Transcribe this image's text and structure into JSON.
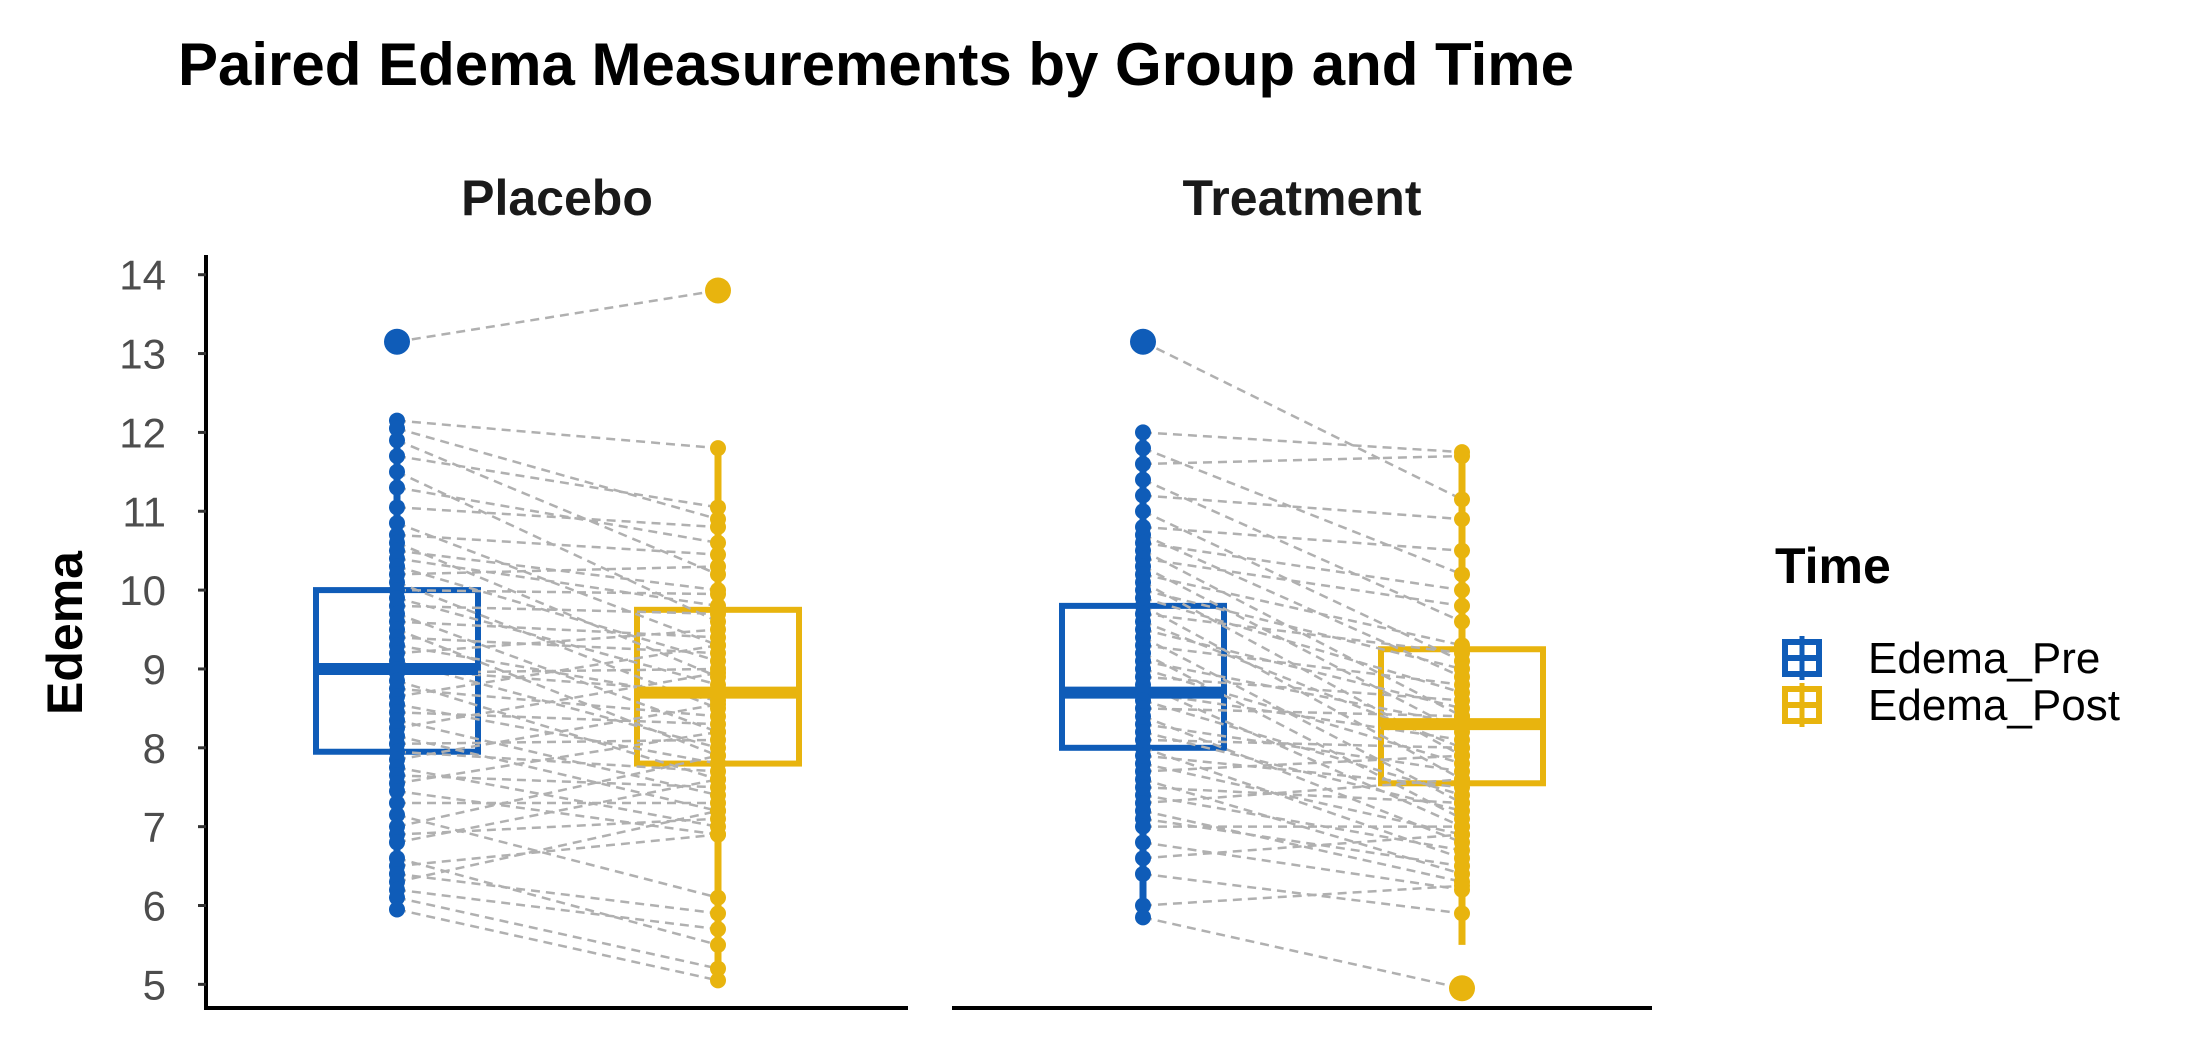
{
  "chart_data": {
    "type": "boxplot",
    "title": "Paired Edema Measurements by Group and Time",
    "ylabel": "Edema",
    "xlabel": "",
    "ylim": [
      4.7,
      14.25
    ],
    "yticks": [
      5,
      6,
      7,
      8,
      9,
      10,
      11,
      12,
      13,
      14
    ],
    "grid": false,
    "legend": {
      "title": "Time",
      "position": "right",
      "entries": [
        {
          "label": "Edema_Pre",
          "color": "#0f5cb8"
        },
        {
          "label": "Edema_Post",
          "color": "#e8b40e"
        }
      ]
    },
    "panels": [
      {
        "name": "Placebo",
        "boxes": [
          {
            "series": "Edema_Pre",
            "color": "#0f5cb8",
            "q1": 7.95,
            "median": 9.0,
            "q3": 10.0,
            "whisker_low": 5.95,
            "whisker_high": 12.15,
            "outliers": [
              13.15
            ]
          },
          {
            "series": "Edema_Post",
            "color": "#e8b40e",
            "q1": 7.8,
            "median": 8.7,
            "q3": 9.75,
            "whisker_low": 5.05,
            "whisker_high": 11.8,
            "outliers": [
              13.8
            ]
          }
        ],
        "pairs": [
          [
            13.15,
            13.8
          ],
          [
            12.15,
            11.8
          ],
          [
            12.05,
            10.9
          ],
          [
            11.9,
            10.2
          ],
          [
            11.7,
            11.05
          ],
          [
            11.5,
            9.6
          ],
          [
            11.3,
            10.6
          ],
          [
            11.05,
            10.8
          ],
          [
            10.85,
            9.3
          ],
          [
            10.7,
            10.45
          ],
          [
            10.6,
            8.9
          ],
          [
            10.5,
            10.0
          ],
          [
            10.4,
            9.8
          ],
          [
            10.3,
            9.1
          ],
          [
            10.2,
            10.3
          ],
          [
            10.1,
            8.5
          ],
          [
            10.0,
            9.95
          ],
          [
            9.9,
            8.8
          ],
          [
            9.8,
            9.7
          ],
          [
            9.7,
            8.2
          ],
          [
            9.6,
            9.4
          ],
          [
            9.5,
            7.9
          ],
          [
            9.4,
            9.2
          ],
          [
            9.3,
            8.6
          ],
          [
            9.2,
            9.5
          ],
          [
            9.1,
            8.0
          ],
          [
            9.0,
            8.7
          ],
          [
            8.95,
            9.0
          ],
          [
            8.85,
            7.6
          ],
          [
            8.75,
            8.4
          ],
          [
            8.65,
            9.3
          ],
          [
            8.55,
            7.8
          ],
          [
            8.45,
            8.3
          ],
          [
            8.35,
            7.4
          ],
          [
            8.25,
            8.95
          ],
          [
            8.15,
            7.2
          ],
          [
            8.05,
            8.1
          ],
          [
            7.95,
            7.7
          ],
          [
            7.85,
            8.55
          ],
          [
            7.75,
            7.0
          ],
          [
            7.65,
            7.5
          ],
          [
            7.55,
            8.2
          ],
          [
            7.45,
            6.9
          ],
          [
            7.3,
            7.3
          ],
          [
            7.15,
            6.1
          ],
          [
            7.0,
            7.9
          ],
          [
            6.9,
            7.1
          ],
          [
            6.8,
            7.6
          ],
          [
            6.6,
            5.5
          ],
          [
            6.5,
            6.9
          ],
          [
            6.4,
            5.9
          ],
          [
            6.3,
            7.2
          ],
          [
            6.2,
            5.7
          ],
          [
            6.1,
            5.2
          ],
          [
            5.95,
            5.05
          ]
        ]
      },
      {
        "name": "Treatment",
        "boxes": [
          {
            "series": "Edema_Pre",
            "color": "#0f5cb8",
            "q1": 8.0,
            "median": 8.7,
            "q3": 9.8,
            "whisker_low": 5.85,
            "whisker_high": 12.0,
            "outliers": [
              13.15
            ]
          },
          {
            "series": "Edema_Post",
            "color": "#e8b40e",
            "q1": 7.55,
            "median": 8.3,
            "q3": 9.25,
            "whisker_low": 5.5,
            "whisker_high": 11.75,
            "outliers": [
              4.95
            ]
          }
        ],
        "pairs": [
          [
            13.15,
            11.15
          ],
          [
            12.0,
            11.75
          ],
          [
            11.8,
            10.2
          ],
          [
            11.6,
            11.7
          ],
          [
            11.4,
            9.6
          ],
          [
            11.2,
            10.9
          ],
          [
            11.0,
            9.1
          ],
          [
            10.8,
            10.5
          ],
          [
            10.7,
            8.9
          ],
          [
            10.6,
            10.0
          ],
          [
            10.5,
            8.4
          ],
          [
            10.4,
            9.8
          ],
          [
            10.3,
            8.2
          ],
          [
            10.2,
            9.3
          ],
          [
            10.1,
            7.9
          ],
          [
            10.0,
            9.0
          ],
          [
            9.9,
            8.7
          ],
          [
            9.8,
            7.6
          ],
          [
            9.7,
            9.2
          ],
          [
            9.6,
            8.0
          ],
          [
            9.5,
            8.5
          ],
          [
            9.4,
            7.3
          ],
          [
            9.3,
            8.8
          ],
          [
            9.2,
            7.1
          ],
          [
            9.1,
            8.3
          ],
          [
            9.0,
            7.8
          ],
          [
            8.9,
            8.6
          ],
          [
            8.8,
            7.0
          ],
          [
            8.7,
            8.1
          ],
          [
            8.6,
            7.4
          ],
          [
            8.5,
            8.4
          ],
          [
            8.4,
            6.8
          ],
          [
            8.3,
            7.7
          ],
          [
            8.2,
            7.2
          ],
          [
            8.1,
            8.0
          ],
          [
            8.0,
            6.6
          ],
          [
            7.9,
            7.5
          ],
          [
            7.8,
            6.9
          ],
          [
            7.7,
            7.9
          ],
          [
            7.6,
            6.4
          ],
          [
            7.5,
            7.3
          ],
          [
            7.4,
            6.7
          ],
          [
            7.3,
            7.6
          ],
          [
            7.2,
            6.3
          ],
          [
            7.1,
            6.5
          ],
          [
            7.0,
            7.0
          ],
          [
            6.8,
            6.2
          ],
          [
            6.6,
            6.9
          ],
          [
            6.4,
            5.9
          ],
          [
            6.0,
            6.25
          ],
          [
            5.85,
            4.95
          ]
        ]
      }
    ]
  }
}
